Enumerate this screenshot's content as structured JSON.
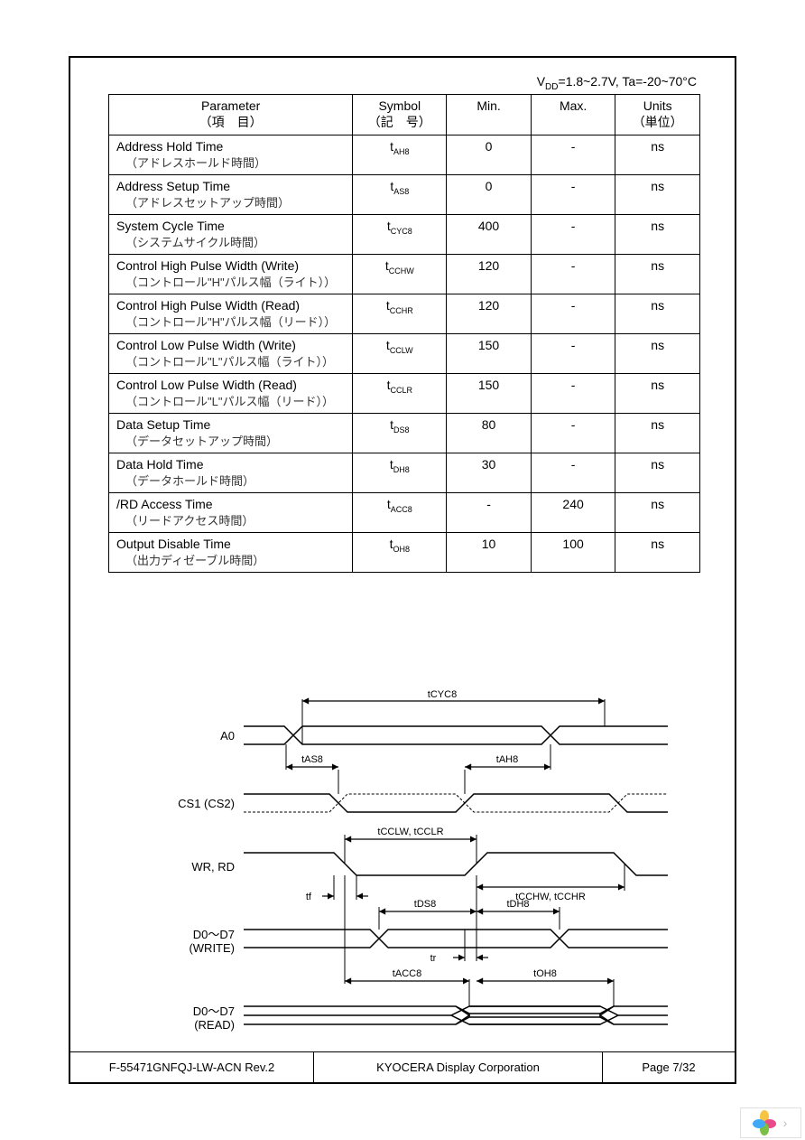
{
  "condition": {
    "prefix": "V",
    "vdd_sub": "DD",
    "range": "=1.8~2.7V, Ta=-20~70°C"
  },
  "headers": {
    "parameter": "Parameter",
    "parameter_jp": "（項　目）",
    "symbol": "Symbol",
    "symbol_jp": "（記　号）",
    "min": "Min.",
    "max": "Max.",
    "units": "Units",
    "units_jp": "（単位）"
  },
  "rows": [
    {
      "param_en": "Address Hold Time",
      "param_jp": "（アドレスホールド時間）",
      "sym": "t",
      "sub": "AH8",
      "min": "0",
      "max": "-",
      "unit": "ns"
    },
    {
      "param_en": "Address Setup Time",
      "param_jp": "（アドレスセットアップ時間）",
      "sym": "t",
      "sub": "AS8",
      "min": "0",
      "max": "-",
      "unit": "ns"
    },
    {
      "param_en": "System Cycle Time",
      "param_jp": "（システムサイクル時間）",
      "sym": "t",
      "sub": "CYC8",
      "min": "400",
      "max": "-",
      "unit": "ns"
    },
    {
      "param_en": "Control High Pulse Width (Write)",
      "param_jp": "（コントロール\"H\"パルス幅（ライト））",
      "sym": "t",
      "sub": "CCHW",
      "min": "120",
      "max": "-",
      "unit": "ns"
    },
    {
      "param_en": "Control High Pulse Width (Read)",
      "param_jp": "（コントロール\"H\"パルス幅（リード））",
      "sym": "t",
      "sub": "CCHR",
      "min": "120",
      "max": "-",
      "unit": "ns"
    },
    {
      "param_en": "Control Low Pulse Width (Write)",
      "param_jp": "（コントロール\"L\"パルス幅（ライト））",
      "sym": "t",
      "sub": "CCLW",
      "min": "150",
      "max": "-",
      "unit": "ns"
    },
    {
      "param_en": "Control Low Pulse Width (Read)",
      "param_jp": "（コントロール\"L\"パルス幅（リード））",
      "sym": "t",
      "sub": "CCLR",
      "min": "150",
      "max": "-",
      "unit": "ns"
    },
    {
      "param_en": "Data Setup Time",
      "param_jp": "（データセットアップ時間）",
      "sym": "t",
      "sub": "DS8",
      "min": "80",
      "max": "-",
      "unit": "ns"
    },
    {
      "param_en": "Data Hold Time",
      "param_jp": "（データホールド時間）",
      "sym": "t",
      "sub": "DH8",
      "min": "30",
      "max": "-",
      "unit": "ns"
    },
    {
      "param_en": "/RD Access Time",
      "param_jp": "（リードアクセス時間）",
      "sym": "t",
      "sub": "ACC8",
      "min": "-",
      "max": "240",
      "unit": "ns"
    },
    {
      "param_en": "Output Disable Time",
      "param_jp": "（出力ディゼーブル時間）",
      "sym": "t",
      "sub": "OH8",
      "min": "10",
      "max": "100",
      "unit": "ns"
    }
  ],
  "timing_labels": {
    "a0": "A0",
    "cs": "CS1 (CS2)",
    "wrrd": "WR, RD",
    "d_write1": "D0～D7",
    "d_write2": "(WRITE)",
    "d_read1": "D0～D7",
    "d_read2": "(READ)",
    "tcyc8": "tCYC8",
    "tas8": "tAS8",
    "tah8": "tAH8",
    "tcclw": "tCCLW, tCCLR",
    "tcchw": "tCCHW, tCCHR",
    "tf": "tf",
    "tds8": "tDS8",
    "tdh8": "tDH8",
    "tr": "tr",
    "tacc8": "tACC8",
    "toh8": "tOH8"
  },
  "footer": {
    "doc_id": "F-55471GNFQJ-LW-ACN    Rev.2",
    "company": "KYOCERA Display Corporation",
    "page": "Page 7/32"
  },
  "style": {
    "border_color": "#000000",
    "text_color": "#000000",
    "background": "#ffffff",
    "font_size_main": 14,
    "font_size_sub": 10,
    "logo_colors": [
      "#f6c544",
      "#e94b8a",
      "#7bc043",
      "#3fa9f5"
    ]
  }
}
